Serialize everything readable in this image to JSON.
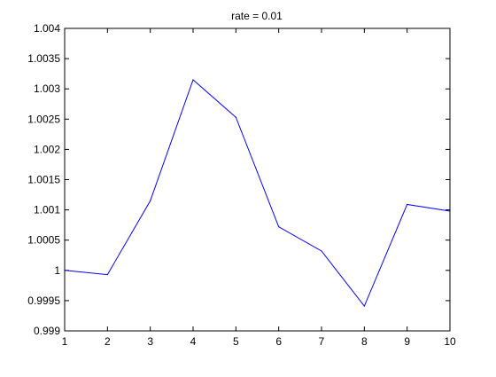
{
  "chart_data": {
    "type": "line",
    "title": "rate = 0.01",
    "xlabel": "",
    "ylabel": "",
    "xlim": [
      1,
      10
    ],
    "ylim": [
      0.999,
      1.004
    ],
    "grid": false,
    "x_ticks": [
      1,
      2,
      3,
      4,
      5,
      6,
      7,
      8,
      9,
      10
    ],
    "x_tick_labels": [
      "1",
      "2",
      "3",
      "4",
      "5",
      "6",
      "7",
      "8",
      "9",
      "10"
    ],
    "y_ticks": [
      0.999,
      0.9995,
      1,
      1.0005,
      1.001,
      1.0015,
      1.002,
      1.0025,
      1.003,
      1.0035,
      1.004
    ],
    "y_tick_labels": [
      "0.999",
      "0.9995",
      "1",
      "1.0005",
      "1.001",
      "1.0015",
      "1.002",
      "1.0025",
      "1.003",
      "1.0035",
      "1.004"
    ],
    "series": [
      {
        "color": "#0000ff",
        "x": [
          1,
          2,
          3,
          4,
          5,
          6,
          7,
          8,
          9,
          10
        ],
        "y": [
          1.0,
          0.99993,
          1.00115,
          1.00315,
          1.00253,
          1.00072,
          1.00032,
          0.99941,
          1.00109,
          1.00098
        ]
      }
    ]
  }
}
